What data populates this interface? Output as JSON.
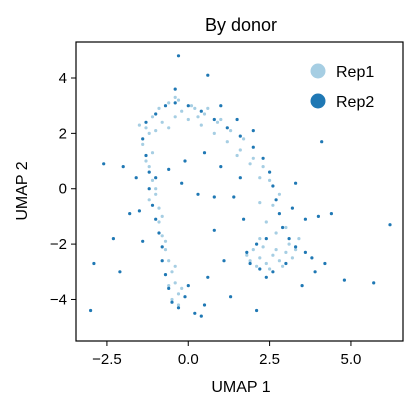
{
  "chart_data": {
    "type": "scatter",
    "title": "By donor",
    "xlabel": "UMAP 1",
    "ylabel": "UMAP 2",
    "xlim": [
      -3.45,
      6.6
    ],
    "ylim": [
      -5.5,
      5.3
    ],
    "xticks": [
      -2.5,
      0.0,
      2.5,
      5.0
    ],
    "xtick_labels": [
      "−2.5",
      "0.0",
      "2.5",
      "5.0"
    ],
    "yticks": [
      -4,
      -2,
      0,
      2,
      4
    ],
    "ytick_labels": [
      "−4",
      "−2",
      "0",
      "2",
      "4"
    ],
    "grid": false,
    "legend_position": "top-right",
    "series": [
      {
        "name": "Rep1",
        "color": "#a6cee3",
        "points": [
          [
            -1.3,
            2.2
          ],
          [
            -1.1,
            2.6
          ],
          [
            -0.9,
            2.9
          ],
          [
            -0.6,
            3.1
          ],
          [
            -0.3,
            3.2
          ],
          [
            0.1,
            3.0
          ],
          [
            0.5,
            2.7
          ],
          [
            0.9,
            2.4
          ],
          [
            1.3,
            2.1
          ],
          [
            1.7,
            1.8
          ],
          [
            -1.2,
            2.0
          ],
          [
            -0.8,
            2.4
          ],
          [
            -0.4,
            2.6
          ],
          [
            0.0,
            2.5
          ],
          [
            0.4,
            2.3
          ],
          [
            0.8,
            2.0
          ],
          [
            1.2,
            1.7
          ],
          [
            1.6,
            1.4
          ],
          [
            2.0,
            1.1
          ],
          [
            2.3,
            0.8
          ],
          [
            -1.4,
            1.6
          ],
          [
            -1.0,
            2.1
          ],
          [
            -0.6,
            2.2
          ],
          [
            -0.2,
            2.8
          ],
          [
            0.3,
            2.6
          ],
          [
            -1.1,
            1.3
          ],
          [
            -1.2,
            0.8
          ],
          [
            -1.1,
            0.3
          ],
          [
            -1.0,
            -0.2
          ],
          [
            -0.9,
            -0.7
          ],
          [
            -0.9,
            -1.2
          ],
          [
            -0.8,
            -1.7
          ],
          [
            -0.7,
            -2.2
          ],
          [
            -0.6,
            -2.6
          ],
          [
            -0.5,
            -3.0
          ],
          [
            -0.4,
            -3.4
          ],
          [
            -0.3,
            -3.8
          ],
          [
            -0.5,
            -4.0
          ],
          [
            -0.2,
            -3.6
          ],
          [
            -0.6,
            -3.5
          ],
          [
            -1.3,
            1.0
          ],
          [
            -1.0,
            0.0
          ],
          [
            -0.8,
            -1.0
          ],
          [
            -0.7,
            -1.9
          ],
          [
            -0.4,
            -2.8
          ],
          [
            2.0,
            -2.2
          ],
          [
            2.2,
            -2.5
          ],
          [
            2.4,
            -2.7
          ],
          [
            2.6,
            -2.4
          ],
          [
            2.8,
            -2.6
          ],
          [
            3.0,
            -2.3
          ],
          [
            3.2,
            -2.5
          ],
          [
            2.1,
            -2.8
          ],
          [
            2.5,
            -2.9
          ],
          [
            2.9,
            -2.8
          ],
          [
            3.3,
            -2.2
          ],
          [
            2.3,
            -2.1
          ],
          [
            2.7,
            -2.2
          ],
          [
            1.9,
            -2.6
          ],
          [
            3.1,
            -2.0
          ],
          [
            2.4,
            -1.2
          ],
          [
            2.6,
            -0.6
          ],
          [
            2.8,
            -0.2
          ],
          [
            2.5,
            0.3
          ],
          [
            2.7,
            -1.6
          ],
          [
            3.0,
            -1.4
          ],
          [
            2.2,
            -1.8
          ],
          [
            1.9,
            0.9
          ],
          [
            1.5,
            1.2
          ],
          [
            2.2,
            -0.5
          ],
          [
            -0.4,
            3.3
          ],
          [
            0.6,
            2.9
          ],
          [
            1.0,
            2.5
          ],
          [
            -1.5,
            2.3
          ],
          [
            3.4,
            -1.8
          ],
          [
            1.8,
            -2.4
          ],
          [
            2.2,
            0.4
          ],
          [
            -0.3,
            -4.2
          ],
          [
            -1.2,
            -0.4
          ],
          [
            0.2,
            2.9
          ]
        ]
      },
      {
        "name": "Rep2",
        "color": "#1f78b4",
        "points": [
          [
            -1.3,
            2.4
          ],
          [
            -1.0,
            2.7
          ],
          [
            -0.7,
            3.0
          ],
          [
            -0.4,
            3.1
          ],
          [
            0.0,
            3.0
          ],
          [
            0.4,
            2.8
          ],
          [
            0.8,
            2.5
          ],
          [
            1.2,
            2.2
          ],
          [
            1.6,
            1.9
          ],
          [
            2.0,
            1.5
          ],
          [
            2.3,
            1.1
          ],
          [
            2.5,
            0.6
          ],
          [
            2.6,
            0.1
          ],
          [
            2.7,
            -0.4
          ],
          [
            2.8,
            -0.9
          ],
          [
            2.9,
            -1.4
          ],
          [
            3.1,
            -1.8
          ],
          [
            3.3,
            -2.1
          ],
          [
            3.0,
            -2.7
          ],
          [
            2.6,
            -3.0
          ],
          [
            2.2,
            -2.9
          ],
          [
            1.9,
            -2.7
          ],
          [
            1.8,
            -2.3
          ],
          [
            2.1,
            -2.0
          ],
          [
            2.4,
            -1.8
          ],
          [
            -1.4,
            1.8
          ],
          [
            -1.3,
            1.2
          ],
          [
            -1.2,
            0.6
          ],
          [
            -1.2,
            0.0
          ],
          [
            -1.1,
            -0.6
          ],
          [
            -1.0,
            -1.1
          ],
          [
            -0.9,
            -1.6
          ],
          [
            -0.8,
            -2.1
          ],
          [
            -0.8,
            -2.6
          ],
          [
            -0.7,
            -3.1
          ],
          [
            -0.6,
            -3.6
          ],
          [
            -0.5,
            -4.1
          ],
          [
            -0.3,
            -4.3
          ],
          [
            -0.1,
            -3.9
          ],
          [
            0.0,
            -3.5
          ],
          [
            -1.6,
            0.4
          ],
          [
            -1.5,
            -0.8
          ],
          [
            -1.4,
            -1.9
          ],
          [
            -0.2,
            0.2
          ],
          [
            0.3,
            -0.2
          ],
          [
            1.0,
            0.8
          ],
          [
            1.4,
            -0.3
          ],
          [
            1.7,
            -1.1
          ],
          [
            0.8,
            -1.5
          ],
          [
            0.5,
            1.3
          ],
          [
            -2.0,
            0.8
          ],
          [
            -2.3,
            -1.8
          ],
          [
            -2.6,
            0.9
          ],
          [
            -3.0,
            -4.4
          ],
          [
            -2.9,
            -2.7
          ],
          [
            -2.1,
            -3.0
          ],
          [
            -1.8,
            -0.9
          ],
          [
            0.6,
            -3.2
          ],
          [
            1.1,
            -2.6
          ],
          [
            3.6,
            -1.1
          ],
          [
            3.8,
            -2.5
          ],
          [
            4.0,
            -1.0
          ],
          [
            4.4,
            -0.9
          ],
          [
            4.8,
            -3.3
          ],
          [
            5.7,
            -3.4
          ],
          [
            6.2,
            -1.3
          ],
          [
            4.1,
            1.7
          ],
          [
            3.5,
            -3.5
          ],
          [
            3.9,
            -3.0
          ],
          [
            0.6,
            4.1
          ],
          [
            -0.4,
            3.6
          ],
          [
            1.0,
            3.0
          ],
          [
            1.5,
            2.5
          ],
          [
            2.0,
            2.1
          ],
          [
            0.4,
            -4.6
          ],
          [
            1.3,
            -3.9
          ],
          [
            2.1,
            -4.4
          ],
          [
            0.8,
            -0.3
          ],
          [
            -0.6,
            0.7
          ],
          [
            0.2,
            -4.5
          ],
          [
            -0.3,
            4.8
          ],
          [
            3.3,
            0.2
          ],
          [
            3.2,
            -0.7
          ],
          [
            3.6,
            -2.3
          ],
          [
            0.5,
            -4.2
          ],
          [
            -1.0,
            0.4
          ],
          [
            2.4,
            -3.2
          ],
          [
            1.6,
            0.4
          ],
          [
            -0.1,
            1.0
          ],
          [
            4.2,
            -2.7
          ]
        ]
      }
    ]
  }
}
